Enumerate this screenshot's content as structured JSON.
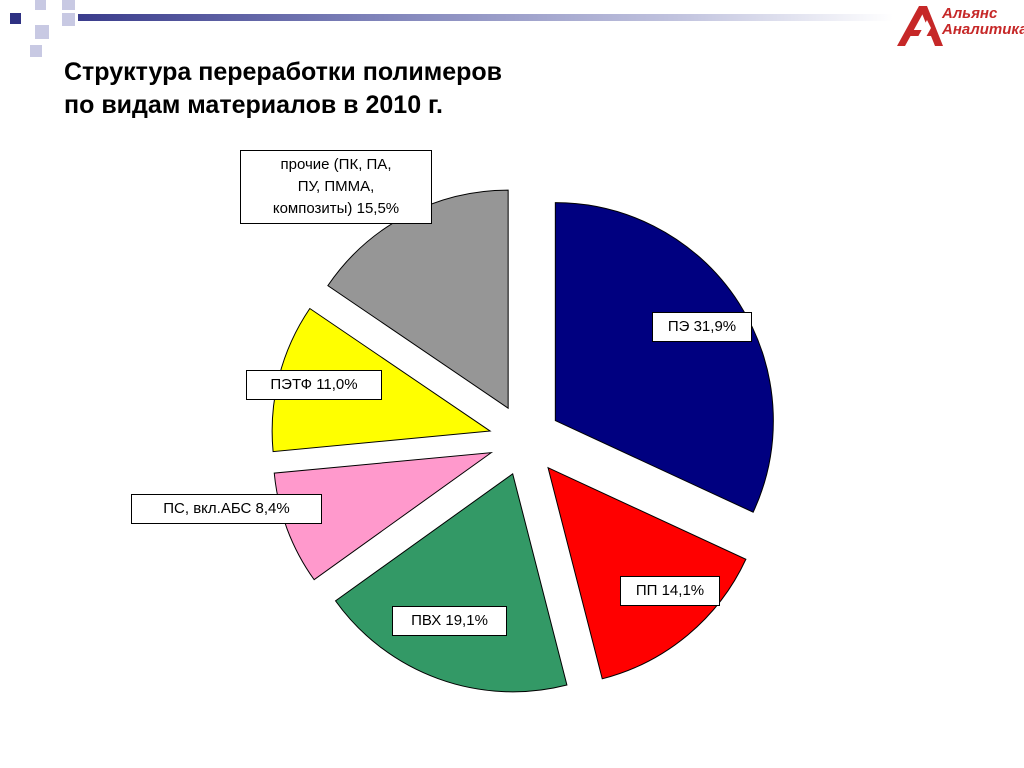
{
  "title": {
    "line1": "Структура переработки полимеров",
    "line2": "по видам материалов в 2010 г."
  },
  "logo": {
    "line1": "Альянс",
    "line2": "Аналитика",
    "icon": "alliance-logo-icon",
    "color": "#c62828"
  },
  "chart_data": {
    "type": "pie",
    "title": "Структура переработки полимеров по видам материалов в 2010 г.",
    "exploded": true,
    "slices": [
      {
        "label": "ПЭ 31,9%",
        "value": 31.9,
        "color": "#000080"
      },
      {
        "label": "ПП 14,1%",
        "value": 14.1,
        "color": "#ff0000"
      },
      {
        "label": "ПВХ 19,1%",
        "value": 19.1,
        "color": "#339966"
      },
      {
        "label": "ПС, вкл.АБС 8,4%",
        "value": 8.4,
        "color": "#ff99cc"
      },
      {
        "label": "ПЭТФ 11,0%",
        "value": 11.0,
        "color": "#ffff00"
      },
      {
        "label": "прочие (ПК, ПА,\nПУ, ПММА,\nкомпозиты) 15,5%",
        "value": 15.5,
        "color": "#969696"
      }
    ]
  }
}
